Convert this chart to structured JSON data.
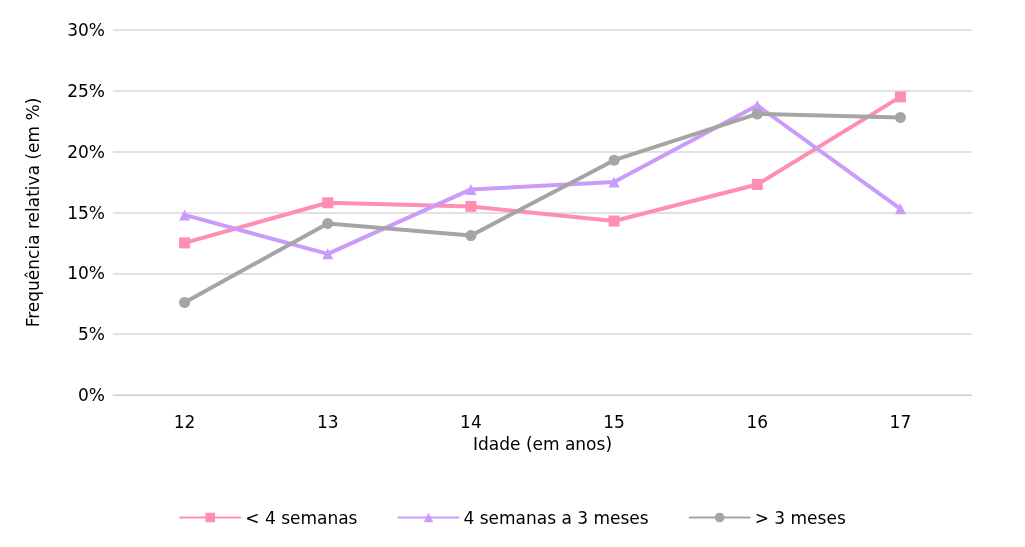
{
  "chart_data": {
    "type": "line",
    "xlabel": "Idade (em anos)",
    "ylabel": "Frequência relativa (em %)",
    "categories": [
      "12",
      "13",
      "14",
      "15",
      "16",
      "17"
    ],
    "series": [
      {
        "name": "< 4 semanas",
        "color": "#ff8fb1",
        "marker": "square",
        "values": [
          12.5,
          15.8,
          15.5,
          14.3,
          17.3,
          24.5
        ]
      },
      {
        "name": "4 semanas a 3 meses",
        "color": "#c99cfa",
        "marker": "triangle",
        "values": [
          14.8,
          11.6,
          16.9,
          17.5,
          23.8,
          15.3
        ]
      },
      {
        "name": "> 3 meses",
        "color": "#a5a5a5",
        "marker": "circle",
        "values": [
          7.6,
          14.1,
          13.1,
          19.3,
          23.1,
          22.8
        ]
      }
    ],
    "ylim": [
      0,
      30
    ],
    "yticks": [
      {
        "value": 0,
        "label": "0%"
      },
      {
        "value": 5,
        "label": "5%"
      },
      {
        "value": 10,
        "label": "10%"
      },
      {
        "value": 15,
        "label": "15%"
      },
      {
        "value": 20,
        "label": "20%"
      },
      {
        "value": 25,
        "label": "25%"
      },
      {
        "value": 30,
        "label": "30%"
      }
    ],
    "grid": "y",
    "legend": "bottom",
    "line_style": "solid"
  }
}
